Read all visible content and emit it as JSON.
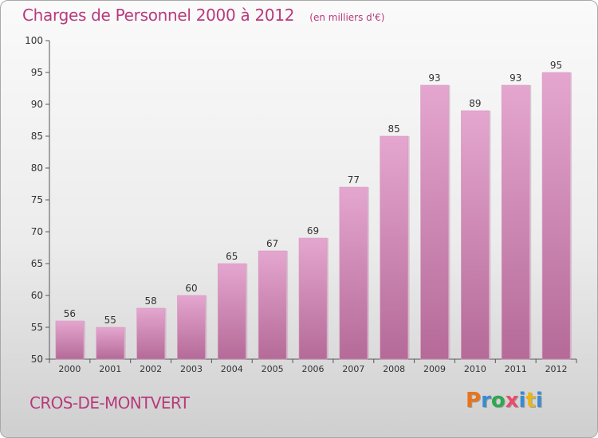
{
  "header": {
    "title": "Charges de Personnel 2000 à 2012",
    "subtitle": "(en milliers d'€)"
  },
  "footer": {
    "commune": "CROS-DE-MONTVERT",
    "brand": "Proxiti",
    "brand_colors": [
      "#e8731c",
      "#3a8bd0",
      "#2fa84f",
      "#e84b6e",
      "#3a8bd0",
      "#e8b61c",
      "#3a8bd0"
    ]
  },
  "colors": {
    "accent": "#b83a7c",
    "bar_top": "#e4a6cf",
    "bar_bottom": "#b56a98",
    "axis": "#555555",
    "grid": "#d8d8d8"
  },
  "chart_data": {
    "type": "bar",
    "categories": [
      "2000",
      "2001",
      "2002",
      "2003",
      "2004",
      "2005",
      "2006",
      "2007",
      "2008",
      "2009",
      "2010",
      "2011",
      "2012"
    ],
    "values": [
      56,
      55,
      58,
      60,
      65,
      67,
      69,
      77,
      85,
      93,
      89,
      93,
      95
    ],
    "ylim": [
      50,
      100
    ],
    "yticks": [
      50,
      55,
      60,
      65,
      70,
      75,
      80,
      85,
      90,
      95,
      100
    ],
    "grid": false,
    "data_labels": true
  }
}
